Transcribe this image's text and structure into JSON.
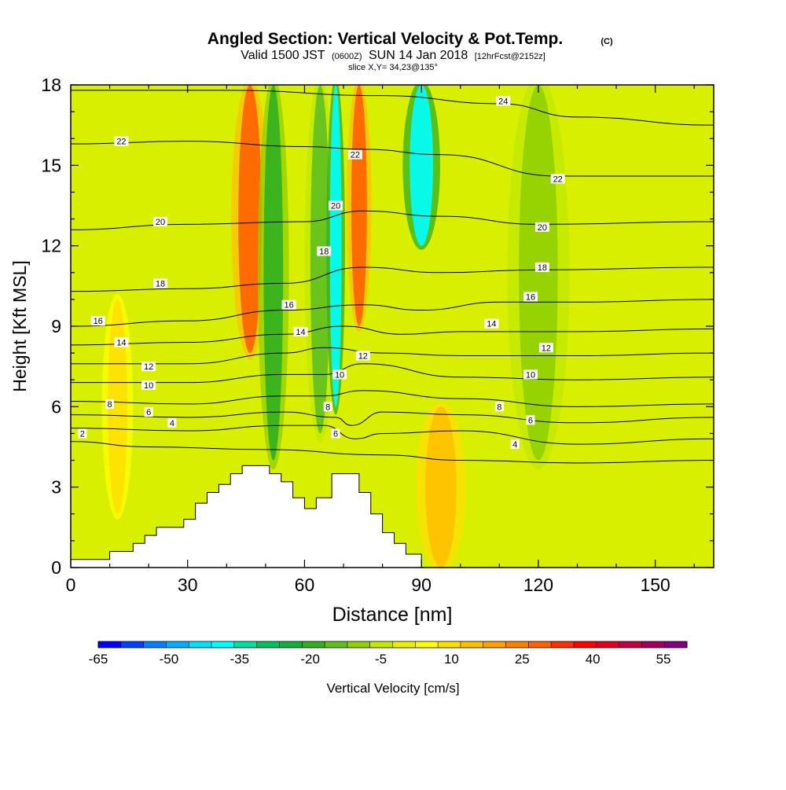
{
  "chart_data": {
    "type": "heatmap",
    "title": "Angled Section: Vertical Velocity & Pot.Temp.",
    "title_mark": "(C)",
    "subtitle": {
      "pre": "Valid 1500 JST",
      "utc": "(0600Z)",
      "date": "SUN 14 Jan 2018",
      "fcst": "[12hrFcst@2152z]"
    },
    "slice_note": "slice X,Y= 34,23@135°",
    "xlabel": "Distance [nm]",
    "ylabel": "Height [Kft MSL]",
    "xlim": [
      0,
      165
    ],
    "ylim": [
      0,
      18
    ],
    "x_ticks": [
      0,
      30,
      60,
      90,
      120,
      150
    ],
    "y_ticks": [
      0,
      3,
      6,
      9,
      12,
      15,
      18
    ],
    "colorbar": {
      "label": "Vertical Velocity [cm/s]",
      "range": [
        -65,
        60
      ],
      "tick_labels": [
        "-65",
        "-50",
        "-35",
        "-20",
        "-5",
        "10",
        "25",
        "40",
        "55"
      ],
      "colors": [
        "#0000ff",
        "#0040ff",
        "#0080ff",
        "#00b0ff",
        "#00e0ff",
        "#00ffff",
        "#00e0a0",
        "#00c060",
        "#10b040",
        "#30b020",
        "#60c020",
        "#90d000",
        "#c0e800",
        "#e8f000",
        "#ffff00",
        "#ffe000",
        "#ffc000",
        "#ffa000",
        "#ff8000",
        "#ff6000",
        "#ff3000",
        "#ff0000",
        "#e00020",
        "#c00040",
        "#a00060",
        "#800080"
      ]
    },
    "velocity_features": [
      {
        "x": 46,
        "w": 6,
        "y0": 8,
        "y1": 18,
        "value": 30
      },
      {
        "x": 52,
        "w": 5,
        "y0": 4,
        "y1": 18,
        "value": -20
      },
      {
        "x": 64,
        "w": 5,
        "y0": 5,
        "y1": 18,
        "value": -15
      },
      {
        "x": 68,
        "w": 3,
        "y0": 6,
        "y1": 18,
        "value": -40
      },
      {
        "x": 74,
        "w": 4,
        "y0": 9,
        "y1": 18,
        "value": 30
      },
      {
        "x": 90,
        "w": 6,
        "y0": 12,
        "y1": 18,
        "value": -40
      },
      {
        "x": 120,
        "w": 10,
        "y0": 4,
        "y1": 18,
        "value": -10
      },
      {
        "x": 95,
        "w": 8,
        "y0": 0,
        "y1": 6,
        "value": 15
      },
      {
        "x": 12,
        "w": 5,
        "y0": 2,
        "y1": 10,
        "value": 10
      }
    ],
    "terrain": [
      [
        0,
        0.3
      ],
      [
        10,
        0.3
      ],
      [
        10,
        0.6
      ],
      [
        16,
        0.6
      ],
      [
        16,
        0.9
      ],
      [
        19,
        0.9
      ],
      [
        19,
        1.2
      ],
      [
        22,
        1.2
      ],
      [
        22,
        1.5
      ],
      [
        29,
        1.5
      ],
      [
        29,
        1.8
      ],
      [
        32,
        1.8
      ],
      [
        32,
        2.4
      ],
      [
        35,
        2.4
      ],
      [
        35,
        2.8
      ],
      [
        38,
        2.8
      ],
      [
        38,
        3.1
      ],
      [
        41,
        3.1
      ],
      [
        41,
        3.5
      ],
      [
        44,
        3.5
      ],
      [
        44,
        3.8
      ],
      [
        51,
        3.8
      ],
      [
        51,
        3.5
      ],
      [
        54,
        3.5
      ],
      [
        54,
        3.2
      ],
      [
        57,
        3.2
      ],
      [
        57,
        2.6
      ],
      [
        60,
        2.6
      ],
      [
        60,
        2.2
      ],
      [
        63,
        2.2
      ],
      [
        63,
        2.6
      ],
      [
        67,
        2.6
      ],
      [
        67,
        3.5
      ],
      [
        74,
        3.5
      ],
      [
        74,
        2.8
      ],
      [
        77,
        2.8
      ],
      [
        77,
        2.0
      ],
      [
        80,
        2.0
      ],
      [
        80,
        1.3
      ],
      [
        83,
        1.3
      ],
      [
        83,
        0.9
      ],
      [
        86,
        0.9
      ],
      [
        86,
        0.5
      ],
      [
        90,
        0.5
      ],
      [
        90,
        0
      ]
    ],
    "isentropes": [
      {
        "level": 2,
        "points": [
          [
            0,
            4.7
          ],
          [
            20,
            4.5
          ],
          [
            50,
            4.4
          ],
          [
            80,
            4.2
          ],
          [
            100,
            4.0
          ],
          [
            130,
            3.9
          ],
          [
            165,
            4.0
          ]
        ]
      },
      {
        "level": 4,
        "points": [
          [
            0,
            5.2
          ],
          [
            30,
            5.1
          ],
          [
            55,
            5.3
          ],
          [
            65,
            5.3
          ],
          [
            73,
            4.8
          ],
          [
            80,
            5.0
          ],
          [
            100,
            5.1
          ],
          [
            130,
            4.6
          ],
          [
            165,
            4.8
          ]
        ]
      },
      {
        "level": 6,
        "points": [
          [
            0,
            5.7
          ],
          [
            30,
            5.6
          ],
          [
            55,
            5.8
          ],
          [
            68,
            5.6
          ],
          [
            72,
            5.3
          ],
          [
            80,
            5.8
          ],
          [
            100,
            5.7
          ],
          [
            130,
            5.4
          ],
          [
            165,
            5.6
          ]
        ]
      },
      {
        "level": 8,
        "points": [
          [
            0,
            6.2
          ],
          [
            30,
            6.1
          ],
          [
            55,
            6.4
          ],
          [
            65,
            6.4
          ],
          [
            75,
            6.6
          ],
          [
            100,
            6.3
          ],
          [
            130,
            6.0
          ],
          [
            165,
            6.1
          ]
        ]
      },
      {
        "level": 10,
        "points": [
          [
            0,
            6.9
          ],
          [
            30,
            6.9
          ],
          [
            55,
            7.2
          ],
          [
            65,
            7.2
          ],
          [
            75,
            7.6
          ],
          [
            100,
            7.1
          ],
          [
            130,
            7.0
          ],
          [
            165,
            7.1
          ]
        ]
      },
      {
        "level": 12,
        "points": [
          [
            0,
            7.6
          ],
          [
            30,
            7.6
          ],
          [
            55,
            8.0
          ],
          [
            65,
            8.2
          ],
          [
            80,
            8.0
          ],
          [
            100,
            7.9
          ],
          [
            130,
            7.9
          ],
          [
            165,
            8.0
          ]
        ]
      },
      {
        "level": 14,
        "points": [
          [
            0,
            8.3
          ],
          [
            30,
            8.4
          ],
          [
            55,
            8.7
          ],
          [
            70,
            9.0
          ],
          [
            85,
            8.7
          ],
          [
            100,
            8.8
          ],
          [
            130,
            8.8
          ],
          [
            165,
            8.9
          ]
        ]
      },
      {
        "level": 16,
        "points": [
          [
            0,
            9.0
          ],
          [
            30,
            9.2
          ],
          [
            55,
            9.6
          ],
          [
            75,
            9.8
          ],
          [
            90,
            9.6
          ],
          [
            110,
            9.9
          ],
          [
            130,
            9.9
          ],
          [
            165,
            10.0
          ]
        ]
      },
      {
        "level": 18,
        "points": [
          [
            0,
            10.3
          ],
          [
            30,
            10.4
          ],
          [
            55,
            10.6
          ],
          [
            75,
            11.2
          ],
          [
            95,
            11.0
          ],
          [
            120,
            11.1
          ],
          [
            165,
            11.2
          ]
        ]
      },
      {
        "level": 20,
        "points": [
          [
            0,
            12.6
          ],
          [
            30,
            12.8
          ],
          [
            60,
            12.9
          ],
          [
            75,
            13.3
          ],
          [
            95,
            13.1
          ],
          [
            120,
            12.8
          ],
          [
            165,
            12.9
          ]
        ]
      },
      {
        "level": 22,
        "points": [
          [
            0,
            15.8
          ],
          [
            30,
            15.9
          ],
          [
            60,
            15.7
          ],
          [
            75,
            15.6
          ],
          [
            95,
            15.4
          ],
          [
            125,
            14.6
          ],
          [
            165,
            14.6
          ]
        ]
      },
      {
        "level": 24,
        "points": [
          [
            0,
            17.8
          ],
          [
            40,
            17.8
          ],
          [
            80,
            17.6
          ],
          [
            110,
            17.3
          ],
          [
            130,
            16.8
          ],
          [
            165,
            16.5
          ]
        ]
      }
    ],
    "isentrope_labels": [
      {
        "text": "2",
        "x": 3,
        "y": 5.0
      },
      {
        "text": "4",
        "x": 26,
        "y": 5.4
      },
      {
        "text": "4",
        "x": 114,
        "y": 4.6
      },
      {
        "text": "6",
        "x": 20,
        "y": 5.8
      },
      {
        "text": "6",
        "x": 68,
        "y": 5.0
      },
      {
        "text": "6",
        "x": 118,
        "y": 5.5
      },
      {
        "text": "8",
        "x": 10,
        "y": 6.1
      },
      {
        "text": "8",
        "x": 66,
        "y": 6.0
      },
      {
        "text": "8",
        "x": 110,
        "y": 6.0
      },
      {
        "text": "10",
        "x": 20,
        "y": 6.8
      },
      {
        "text": "10",
        "x": 69,
        "y": 7.2
      },
      {
        "text": "10",
        "x": 118,
        "y": 7.2
      },
      {
        "text": "12",
        "x": 20,
        "y": 7.5
      },
      {
        "text": "12",
        "x": 75,
        "y": 7.9
      },
      {
        "text": "12",
        "x": 122,
        "y": 8.2
      },
      {
        "text": "14",
        "x": 13,
        "y": 8.4
      },
      {
        "text": "14",
        "x": 59,
        "y": 8.8
      },
      {
        "text": "14",
        "x": 108,
        "y": 9.1
      },
      {
        "text": "16",
        "x": 7,
        "y": 9.2
      },
      {
        "text": "16",
        "x": 56,
        "y": 9.8
      },
      {
        "text": "16",
        "x": 118,
        "y": 10.1
      },
      {
        "text": "18",
        "x": 23,
        "y": 10.6
      },
      {
        "text": "18",
        "x": 65,
        "y": 11.8
      },
      {
        "text": "18",
        "x": 121,
        "y": 11.2
      },
      {
        "text": "20",
        "x": 23,
        "y": 12.9
      },
      {
        "text": "20",
        "x": 68,
        "y": 13.5
      },
      {
        "text": "20",
        "x": 121,
        "y": 12.7
      },
      {
        "text": "22",
        "x": 13,
        "y": 15.9
      },
      {
        "text": "22",
        "x": 73,
        "y": 15.4
      },
      {
        "text": "22",
        "x": 125,
        "y": 14.5
      },
      {
        "text": "24",
        "x": 111,
        "y": 17.4
      }
    ]
  }
}
